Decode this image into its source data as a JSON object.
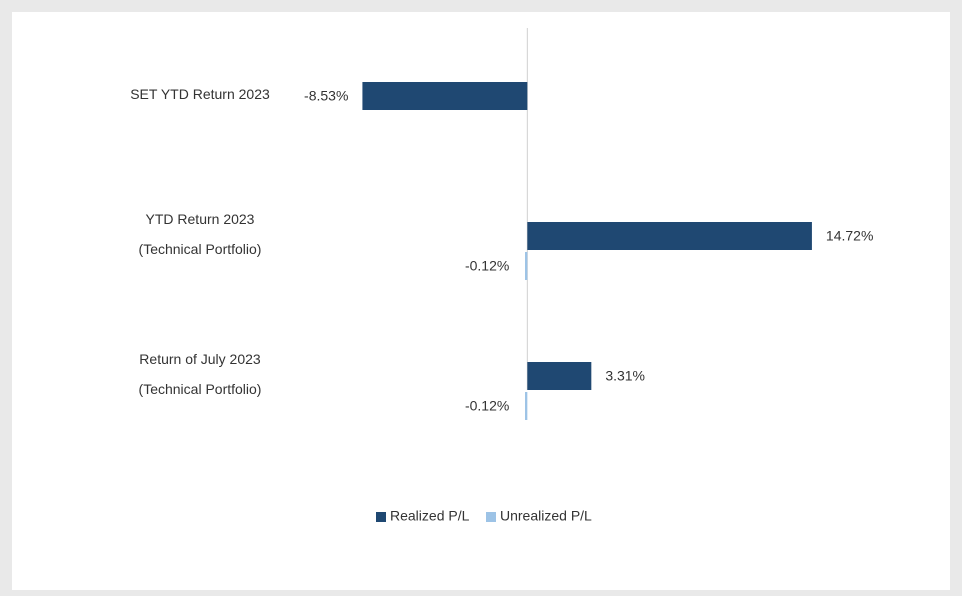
{
  "chart_data": {
    "type": "hbar",
    "categories": [
      "SET YTD Return 2023",
      "YTD Return 2023\n(Technical Portfolio)",
      "Return of July 2023\n(Technical Portfolio)"
    ],
    "series": [
      {
        "name": "Realized P/L",
        "color": "#1f4872",
        "values": [
          -8.53,
          14.72,
          3.31
        ],
        "value_labels": [
          "-8.53%",
          "14.72%",
          "3.31%"
        ]
      },
      {
        "name": "Unrealized P/L",
        "color": "#9dc3e6",
        "values": [
          null,
          -0.12,
          -0.12
        ],
        "value_labels": [
          null,
          "-0.12%",
          "-0.12%"
        ]
      }
    ],
    "xlim": [
      -10,
      20
    ],
    "legend": "bottom"
  }
}
